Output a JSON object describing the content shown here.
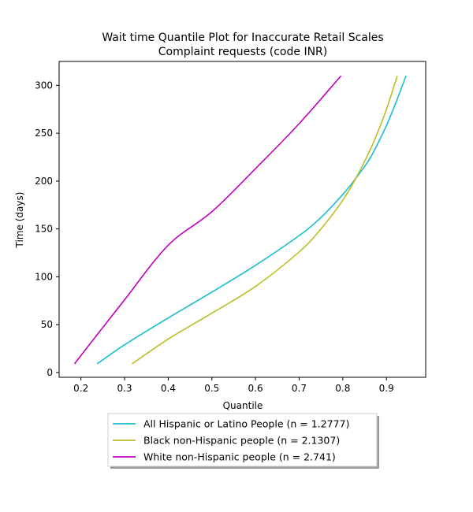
{
  "chart_data": {
    "type": "line",
    "title_line1": "Wait time Quantile Plot for Inaccurate Retail Scales",
    "title_line2": "Complaint  requests (code INR)",
    "xlabel": "Quantile",
    "ylabel": "Time (days)",
    "xlim": [
      0.15,
      0.99
    ],
    "ylim": [
      -5,
      325
    ],
    "xticks": [
      0.2,
      0.3,
      0.4,
      0.5,
      0.6,
      0.7,
      0.8,
      0.9
    ],
    "xtick_labels": [
      "0.2",
      "0.3",
      "0.4",
      "0.5",
      "0.6",
      "0.7",
      "0.8",
      "0.9"
    ],
    "yticks": [
      0,
      50,
      100,
      150,
      200,
      250,
      300
    ],
    "ytick_labels": [
      "0",
      "50",
      "100",
      "150",
      "200",
      "250",
      "300"
    ],
    "grid": false,
    "legend_position": "bottom-center, below the axes",
    "series": [
      {
        "name": "All Hispanic or Latino People (n = 1.2777)",
        "color": "#17becf",
        "x": [
          0.237,
          0.3,
          0.4,
          0.5,
          0.6,
          0.7,
          0.75,
          0.8,
          0.83,
          0.86,
          0.88,
          0.9,
          0.92,
          0.945
        ],
        "y": [
          9,
          29,
          57,
          84,
          112,
          143,
          162,
          186,
          203,
          222,
          239,
          258,
          280,
          310
        ]
      },
      {
        "name": "Black non-Hispanic people (n = 2.1307)",
        "color": "#bcbd22",
        "x": [
          0.317,
          0.4,
          0.5,
          0.6,
          0.7,
          0.75,
          0.8,
          0.83,
          0.86,
          0.88,
          0.9,
          0.925
        ],
        "y": [
          9,
          35,
          62,
          90,
          126,
          150,
          180,
          203,
          230,
          251,
          275,
          310
        ]
      },
      {
        "name": "White non-Hispanic people (n = 2.741)",
        "color": "#bf00bf",
        "x": [
          0.185,
          0.25,
          0.3,
          0.4,
          0.5,
          0.6,
          0.7,
          0.796
        ],
        "y": [
          9,
          47,
          76,
          133,
          168,
          213,
          260,
          310
        ]
      }
    ]
  }
}
